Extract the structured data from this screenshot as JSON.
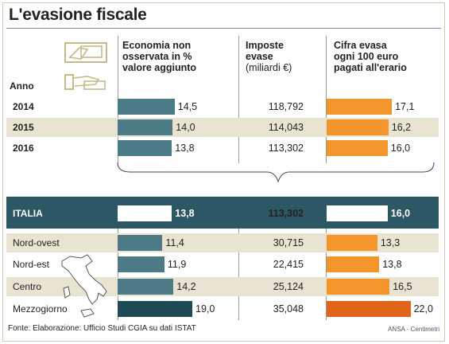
{
  "title": "L'evasione fiscale",
  "header": {
    "anno": "Anno",
    "col1": [
      "Economia non",
      "osservata in %",
      "valore aggiunto"
    ],
    "col2": [
      "Imposte",
      "evase",
      "(miliardi €)"
    ],
    "col3": [
      "Cifra evasa",
      "ogni 100 euro",
      "pagati all'erario"
    ]
  },
  "footer": {
    "source": "Fonte: Elaborazione: Ufficio Studi CGIA su dati ISTAT",
    "credit": "ANSA · Centimetri"
  },
  "colors": {
    "teal_bar": "#4c7a86",
    "dark_teal": "#1e4b55",
    "banner": "#2c5865",
    "orange_bar": "#f4952c",
    "dark_orange": "#e0651a",
    "stripe": "#e9e4d1"
  },
  "chart_data": {
    "type": "table",
    "columns": [
      "Economia non osservata in % valore aggiunto",
      "Imposte evase (miliardi €)",
      "Cifra evasa ogni 100 euro pagati all'erario"
    ],
    "years": [
      {
        "label": "2014",
        "economia": 14.5,
        "economia_label": "14,5",
        "imposte_label": "118,792",
        "cifra": 17.1,
        "cifra_label": "17,1"
      },
      {
        "label": "2015",
        "economia": 14.0,
        "economia_label": "14,0",
        "imposte_label": "114,043",
        "cifra": 16.2,
        "cifra_label": "16,2"
      },
      {
        "label": "2016",
        "economia": 13.8,
        "economia_label": "13,8",
        "imposte_label": "113,302",
        "cifra": 16.0,
        "cifra_label": "16,0"
      }
    ],
    "total": {
      "label": "ITALIA",
      "economia": 13.8,
      "economia_label": "13,8",
      "imposte_label": "113,302",
      "cifra": 16.0,
      "cifra_label": "16,0"
    },
    "regions": [
      {
        "label": "Nord-ovest",
        "economia": 11.4,
        "economia_label": "11,4",
        "imposte_label": "30,715",
        "cifra": 13.3,
        "cifra_label": "13,3"
      },
      {
        "label": "Nord-est",
        "economia": 11.9,
        "economia_label": "11,9",
        "imposte_label": "22,415",
        "cifra": 13.8,
        "cifra_label": "13,8"
      },
      {
        "label": "Centro",
        "economia": 14.2,
        "economia_label": "14,2",
        "imposte_label": "25,124",
        "cifra": 16.5,
        "cifra_label": "16,5"
      },
      {
        "label": "Mezzogiorno",
        "economia": 19.0,
        "economia_label": "19,0",
        "imposte_label": "35,048",
        "cifra": 22.0,
        "cifra_label": "22,0"
      }
    ]
  }
}
